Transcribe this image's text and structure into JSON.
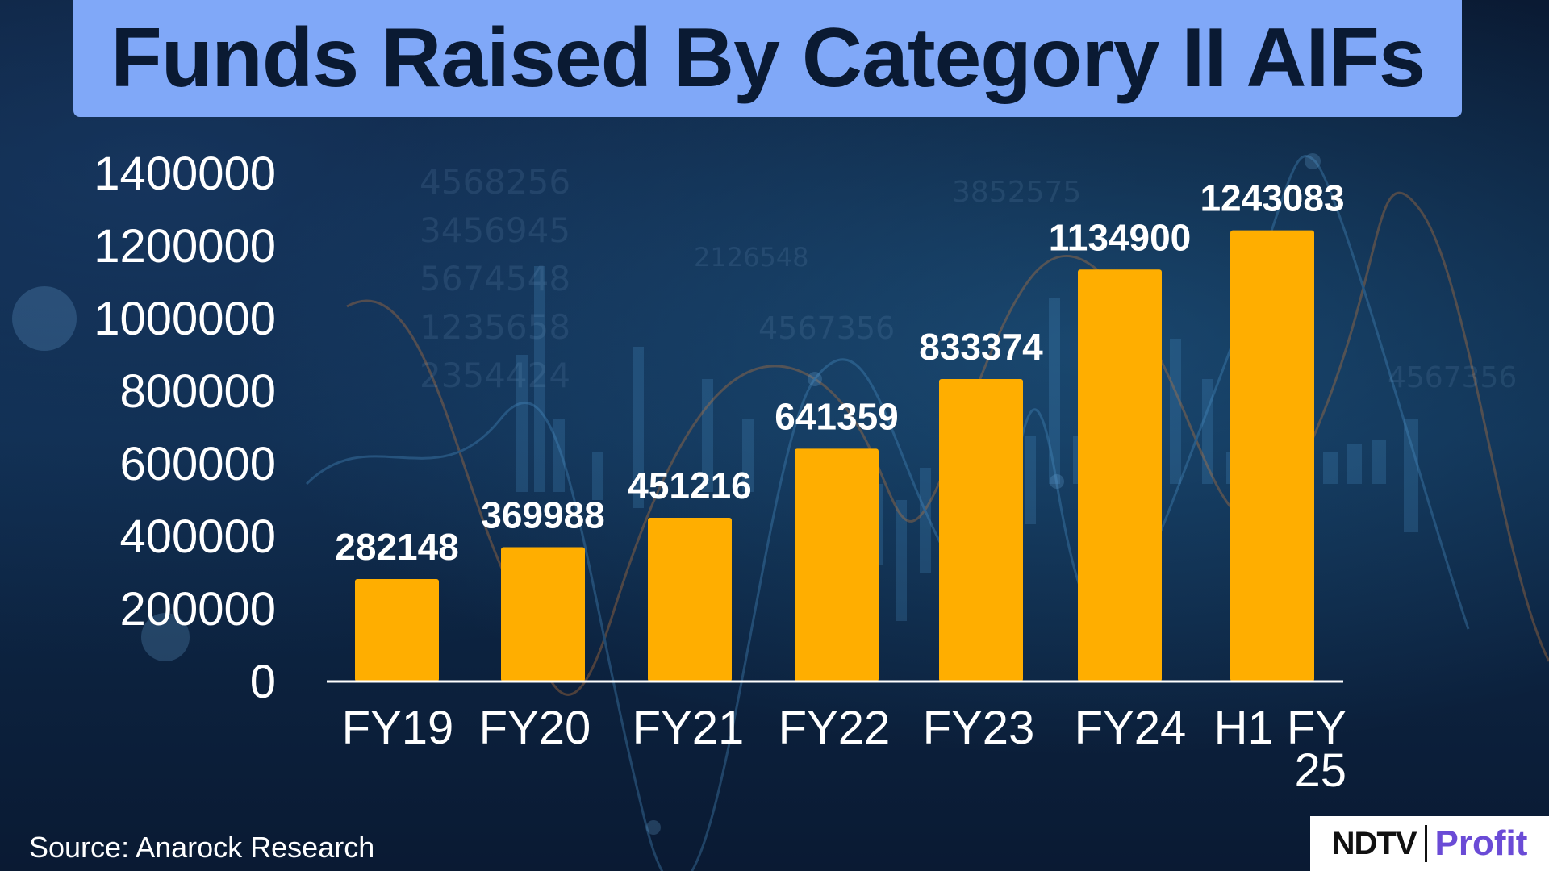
{
  "chart_data": {
    "type": "bar",
    "title": "Funds Raised By Category II AIFs",
    "categories": [
      "FY19",
      "FY20",
      "FY21",
      "FY22",
      "FY23",
      "FY24",
      "H1 FY 25"
    ],
    "values": [
      282148,
      369988,
      451216,
      641359,
      833374,
      1134900,
      1243083
    ],
    "data_labels": [
      "282148",
      "369988",
      "451216",
      "641359",
      "833374",
      "1134900",
      "1243083"
    ],
    "y_ticks": [
      "0",
      "200000",
      "400000",
      "600000",
      "800000",
      "1000000",
      "1200000",
      "1400000"
    ],
    "ylim": [
      0,
      1400000
    ],
    "xlabel": "",
    "ylabel": "",
    "grid": false,
    "bar_color": "#ffae00",
    "label_color": "#ffffff"
  },
  "footer": {
    "source": "Source: Anarock Research"
  },
  "logo": {
    "ndtv": "NDTV",
    "profit": "Profit",
    "ndtv_color": "#111111",
    "profit_color": "#6a4bd6"
  }
}
